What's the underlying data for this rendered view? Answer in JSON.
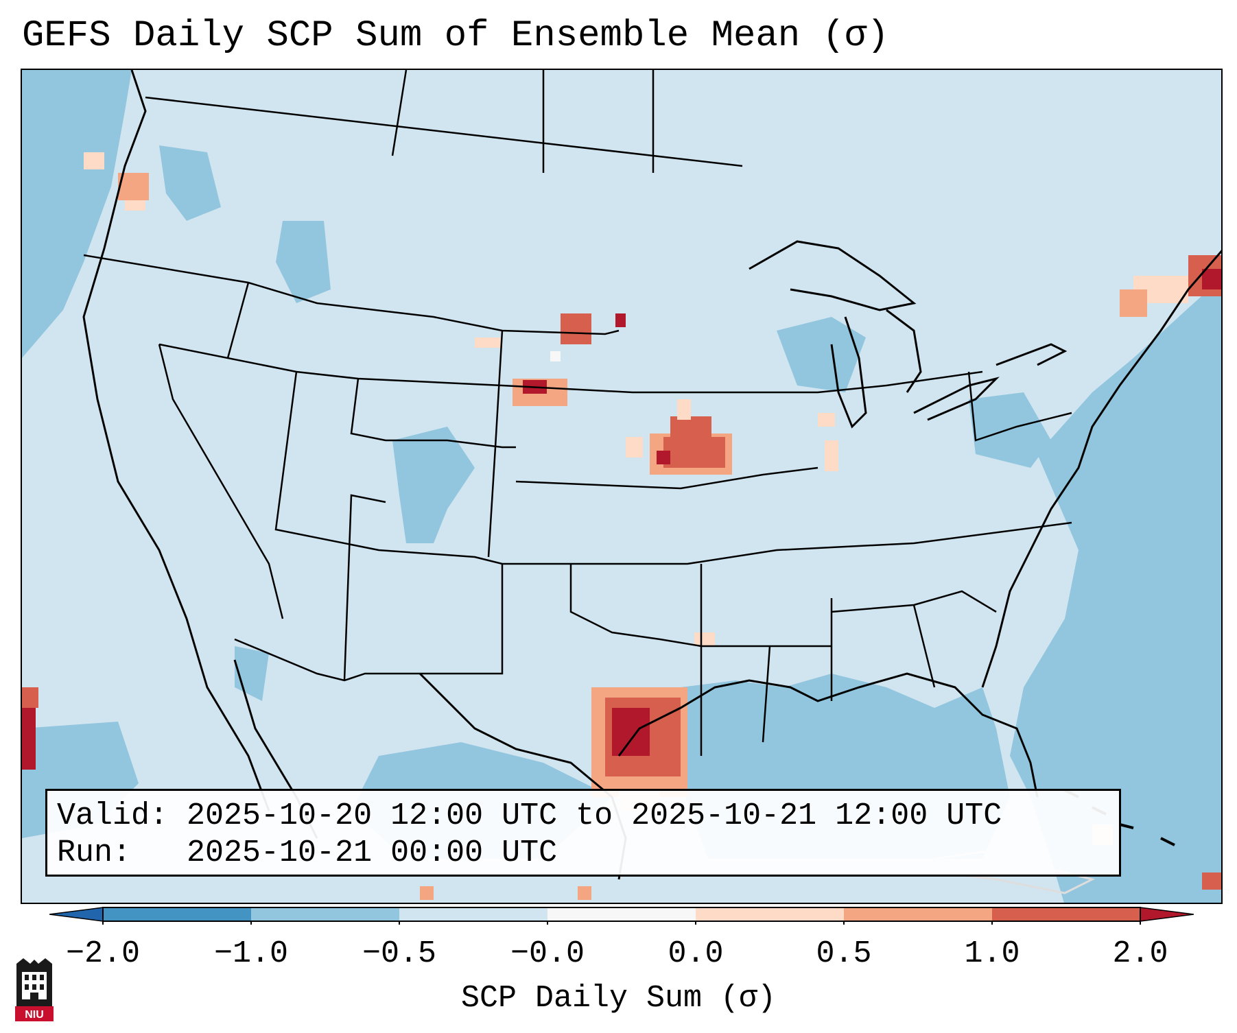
{
  "title": "GEFS Daily SCP Sum of Ensemble Mean (σ)",
  "valid_line": "Valid: 2025-10-20 12:00 UTC to 2025-10-21 12:00 UTC",
  "run_line": "Run:   2025-10-21 00:00 UTC",
  "colorbar": {
    "label": "SCP Daily Sum (σ)",
    "ticks": [
      "−2.0",
      "−1.0",
      "−0.5",
      "−0.0",
      "0.0",
      "0.5",
      "1.0",
      "2.0"
    ],
    "colors": {
      "extend_low": "#2166ac",
      "bin_-2_-1": "#4393c3",
      "bin_-1_-05": "#92c5de",
      "bin_-05_0": "#d1e5f0",
      "bin_0_0": "#f7f7f7",
      "bin_0_05": "#fddbc7",
      "bin_05_1": "#f4a582",
      "bin_1_2": "#d6604d",
      "extend_high": "#b2182b"
    }
  },
  "logo": {
    "text": "NIU",
    "color": "#c8102e"
  },
  "map": {
    "background_value_bin": "-0.5 to 0.0",
    "high_anomaly_regions": [
      "Houston / upper Texas coast",
      "eastern Nebraska / western Iowa",
      "central South Dakota",
      "northern Maine",
      "western Washington coast"
    ]
  }
}
